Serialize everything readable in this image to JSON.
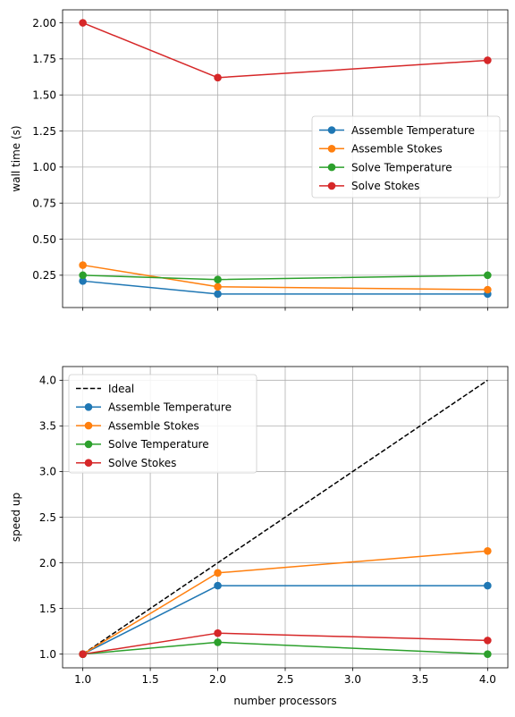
{
  "colors": {
    "blue": "#1f77b4",
    "orange": "#ff7f0e",
    "green": "#2ca02c",
    "red": "#d62728",
    "ideal": "#000000",
    "grid": "#b0b0b0"
  },
  "chart_data": [
    {
      "type": "line",
      "title": "",
      "xlabel": "",
      "ylabel": "wall time (s)",
      "xlim": [
        0.85,
        4.15
      ],
      "ylim": [
        0.026,
        2.09
      ],
      "xticks": [
        1.0,
        1.5,
        2.0,
        2.5,
        3.0,
        3.5,
        4.0
      ],
      "show_xtick_labels": false,
      "yticks": [
        0.25,
        0.5,
        0.75,
        1.0,
        1.25,
        1.5,
        1.75,
        2.0
      ],
      "ytick_labels": [
        "0.25",
        "0.50",
        "0.75",
        "1.00",
        "1.25",
        "1.50",
        "1.75",
        "2.00"
      ],
      "grid": true,
      "legend_position": "center-right",
      "series": [
        {
          "name": "Assemble Temperature",
          "color": "#1f77b4",
          "x": [
            1,
            2,
            4
          ],
          "y": [
            0.21,
            0.12,
            0.12
          ]
        },
        {
          "name": "Assemble Stokes",
          "color": "#ff7f0e",
          "x": [
            1,
            2,
            4
          ],
          "y": [
            0.32,
            0.17,
            0.15
          ]
        },
        {
          "name": "Solve Temperature",
          "color": "#2ca02c",
          "x": [
            1,
            2,
            4
          ],
          "y": [
            0.25,
            0.22,
            0.25
          ]
        },
        {
          "name": "Solve Stokes",
          "color": "#d62728",
          "x": [
            1,
            2,
            4
          ],
          "y": [
            2.0,
            1.62,
            1.74
          ]
        }
      ]
    },
    {
      "type": "line",
      "title": "",
      "xlabel": "number processors",
      "ylabel": "speed up",
      "xlim": [
        0.85,
        4.15
      ],
      "ylim": [
        0.85,
        4.15
      ],
      "xticks": [
        1.0,
        1.5,
        2.0,
        2.5,
        3.0,
        3.5,
        4.0
      ],
      "xtick_labels": [
        "1.0",
        "1.5",
        "2.0",
        "2.5",
        "3.0",
        "3.5",
        "4.0"
      ],
      "show_xtick_labels": true,
      "yticks": [
        1.0,
        1.5,
        2.0,
        2.5,
        3.0,
        3.5,
        4.0
      ],
      "ytick_labels": [
        "1.0",
        "1.5",
        "2.0",
        "2.5",
        "3.0",
        "3.5",
        "4.0"
      ],
      "grid": true,
      "legend_position": "top-left",
      "series": [
        {
          "name": "Ideal",
          "color": "#000000",
          "dashed": true,
          "markers": false,
          "x": [
            1,
            2,
            4
          ],
          "y": [
            1,
            2,
            4
          ]
        },
        {
          "name": "Assemble Temperature",
          "color": "#1f77b4",
          "x": [
            1,
            2,
            4
          ],
          "y": [
            1.0,
            1.75,
            1.75
          ]
        },
        {
          "name": "Assemble Stokes",
          "color": "#ff7f0e",
          "x": [
            1,
            2,
            4
          ],
          "y": [
            1.0,
            1.89,
            2.13
          ]
        },
        {
          "name": "Solve Temperature",
          "color": "#2ca02c",
          "x": [
            1,
            2,
            4
          ],
          "y": [
            1.0,
            1.13,
            1.0
          ]
        },
        {
          "name": "Solve Stokes",
          "color": "#d62728",
          "x": [
            1,
            2,
            4
          ],
          "y": [
            1.0,
            1.23,
            1.15
          ]
        }
      ]
    }
  ]
}
